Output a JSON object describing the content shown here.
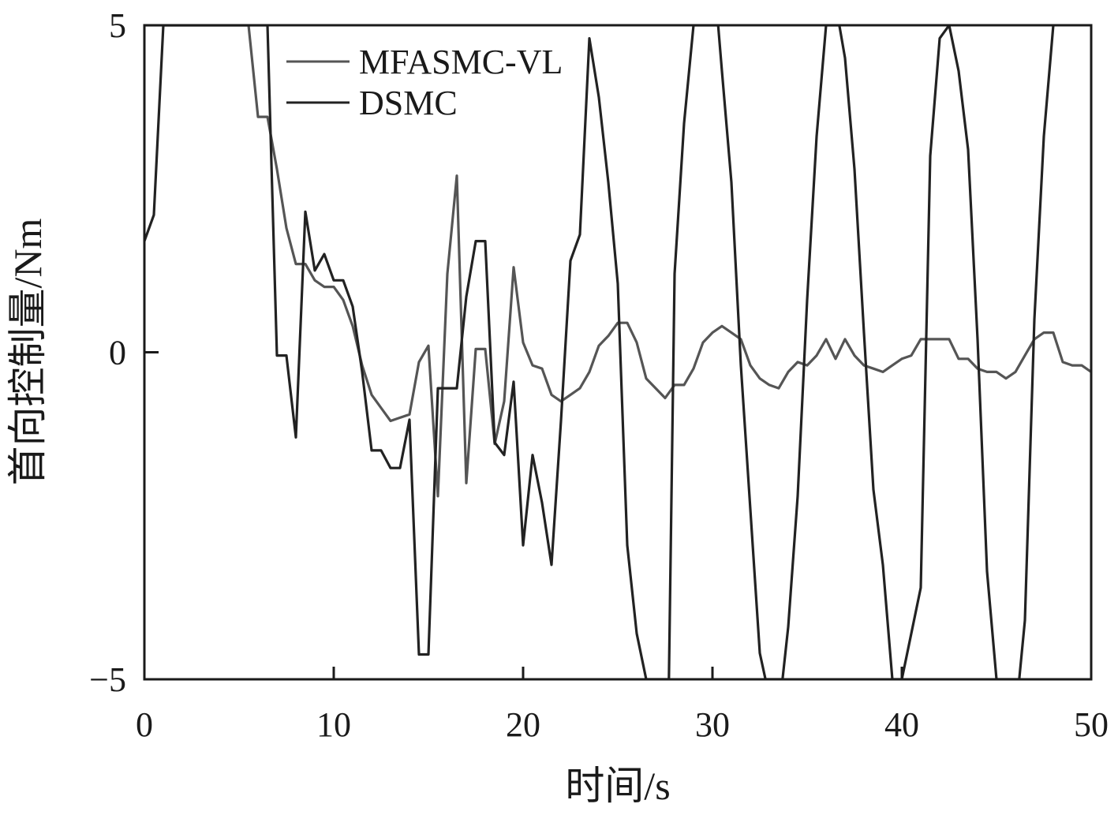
{
  "chart_data": {
    "type": "line",
    "title": "",
    "xlabel": "时间/s",
    "ylabel": "首向控制量/Nm",
    "xlim": [
      0,
      50
    ],
    "ylim": [
      -5,
      5
    ],
    "xticks": [
      0,
      10,
      20,
      30,
      40,
      50
    ],
    "yticks": [
      -5,
      0,
      5
    ],
    "xtick_labels": [
      "0",
      "10",
      "20",
      "30",
      "40",
      "50"
    ],
    "ytick_labels": [
      "−5",
      "0",
      "5"
    ],
    "grid": false,
    "legend": "top-left",
    "series": [
      {
        "name": "MFASMC-VL",
        "color": "#555555",
        "x": [
          0,
          0.5,
          5.5,
          6.0,
          6.5,
          7.0,
          7.5,
          8.0,
          8.5,
          9.0,
          9.5,
          10.0,
          10.5,
          11.0,
          11.5,
          12.0,
          12.5,
          13.0,
          13.5,
          14.0,
          14.5,
          15.0,
          15.5,
          16.0,
          16.5,
          17.0,
          17.5,
          18.0,
          18.5,
          19.0,
          19.5,
          20.0,
          20.5,
          21.0,
          21.5,
          22.0,
          22.5,
          23.0,
          23.5,
          24.0,
          24.5,
          25.0,
          25.5,
          26.0,
          26.5,
          27.0,
          27.5,
          28.0,
          28.5,
          29.0,
          29.5,
          30.0,
          30.5,
          31.0,
          31.5,
          32.0,
          32.5,
          33.0,
          33.5,
          34.0,
          34.5,
          35.0,
          35.5,
          36.0,
          36.5,
          37.0,
          37.5,
          38.0,
          38.5,
          39.0,
          39.5,
          40.0,
          40.5,
          41.0,
          41.5,
          42.0,
          42.5,
          43.0,
          43.5,
          44.0,
          44.5,
          45.0,
          45.5,
          46.0,
          46.5,
          47.0,
          47.5,
          48.0,
          48.5,
          49.0,
          49.5,
          50.0
        ],
        "values": [
          5,
          5,
          5,
          3.6,
          3.6,
          2.8,
          1.9,
          1.35,
          1.35,
          1.1,
          1.0,
          1.0,
          0.8,
          0.4,
          -0.2,
          -0.65,
          -0.85,
          -1.05,
          -1.0,
          -0.95,
          -0.15,
          0.1,
          -2.2,
          1.2,
          2.7,
          -2.0,
          0.05,
          0.05,
          -1.4,
          -0.75,
          1.3,
          0.15,
          -0.2,
          -0.25,
          -0.65,
          -0.75,
          -0.65,
          -0.55,
          -0.3,
          0.1,
          0.25,
          0.45,
          0.45,
          0.15,
          -0.4,
          -0.55,
          -0.7,
          -0.5,
          -0.5,
          -0.25,
          0.15,
          0.3,
          0.4,
          0.3,
          0.2,
          -0.2,
          -0.4,
          -0.5,
          -0.55,
          -0.3,
          -0.15,
          -0.2,
          -0.05,
          0.2,
          -0.1,
          0.2,
          -0.05,
          -0.2,
          -0.25,
          -0.3,
          -0.2,
          -0.1,
          -0.05,
          0.2,
          0.2,
          0.2,
          0.2,
          -0.1,
          -0.1,
          -0.25,
          -0.3,
          -0.3,
          -0.4,
          -0.3,
          -0.05,
          0.2,
          0.3,
          0.3,
          -0.15,
          -0.2,
          -0.2,
          -0.3
        ]
      },
      {
        "name": "DSMC",
        "color": "#222222",
        "x": [
          0,
          0.5,
          1.0,
          1.1,
          6.5,
          7.0,
          7.5,
          8.0,
          8.5,
          9.0,
          9.5,
          10.0,
          10.5,
          11.0,
          11.5,
          12.0,
          12.5,
          13.0,
          13.5,
          14.0,
          14.5,
          15.0,
          15.5,
          16.0,
          16.5,
          17.0,
          17.5,
          18.0,
          18.5,
          19.0,
          19.5,
          20.0,
          20.5,
          21.0,
          21.5,
          22.0,
          22.5,
          23.0,
          23.5,
          24.0,
          24.5,
          25.0,
          25.5,
          26.0,
          26.5,
          26.8,
          27.7,
          28.0,
          28.5,
          29.0,
          29.3,
          30.3,
          30.5,
          31.0,
          31.5,
          32.0,
          32.5,
          32.8,
          33.7,
          34.0,
          34.5,
          35.0,
          35.5,
          36.0,
          36.7,
          37.0,
          37.5,
          38.0,
          38.5,
          39.0,
          39.5,
          40.0,
          40.5,
          41.0,
          41.5,
          42.0,
          42.5,
          43.0,
          43.5,
          44.0,
          44.5,
          45.0,
          45.3,
          46.2,
          46.5,
          47.0,
          47.5,
          48.0
        ],
        "values": [
          1.7,
          2.1,
          5,
          5,
          5,
          -0.05,
          -0.05,
          -1.3,
          2.15,
          1.25,
          1.5,
          1.1,
          1.1,
          0.7,
          -0.3,
          -1.5,
          -1.5,
          -1.77,
          -1.77,
          -1.03,
          -4.62,
          -4.62,
          -0.55,
          -0.55,
          -0.55,
          0.85,
          1.7,
          1.7,
          -1.38,
          -1.57,
          -0.45,
          -2.95,
          -1.57,
          -2.3,
          -3.25,
          -1.05,
          1.4,
          1.8,
          4.8,
          3.9,
          2.6,
          1.05,
          -2.95,
          -4.3,
          -5,
          -5,
          -5,
          1.2,
          3.5,
          5,
          5,
          5,
          4.3,
          2.6,
          -0.2,
          -2.4,
          -4.6,
          -5,
          -5,
          -4.2,
          -2.2,
          0.8,
          3.3,
          5,
          5,
          4.5,
          2.8,
          0.3,
          -2.1,
          -3.25,
          -5,
          -5,
          -4.3,
          -3.6,
          3.0,
          4.8,
          5,
          4.3,
          3.1,
          0.2,
          -3.35,
          -5,
          -5,
          -5,
          -4.1,
          0.5,
          3.3,
          5
        ]
      }
    ]
  }
}
